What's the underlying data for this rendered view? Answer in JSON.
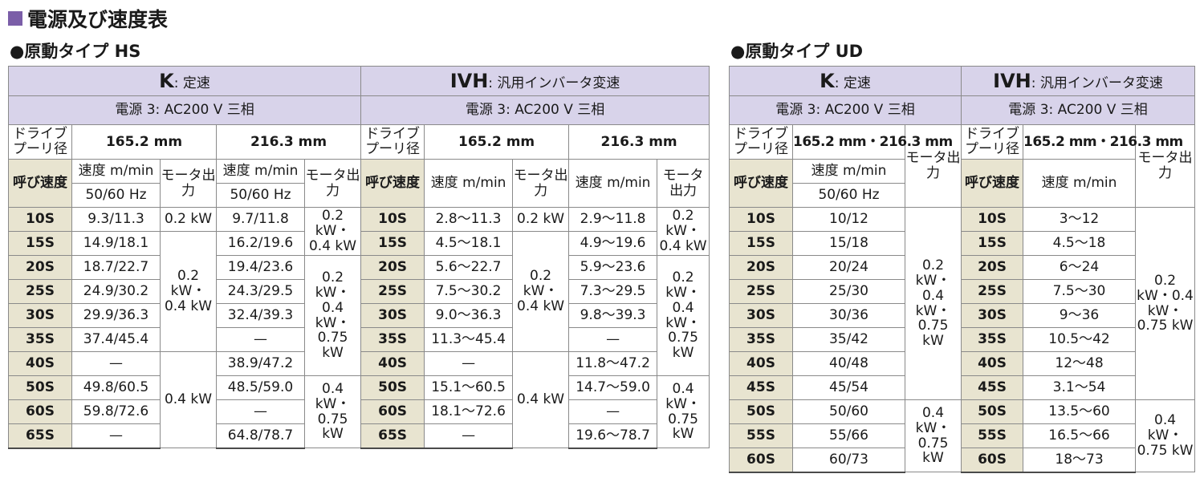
{
  "title": "電源及び速度表",
  "hs": {
    "heading": "●原動タイプ HS",
    "k_code": "K",
    "k_label": ": 定速",
    "ivh_code": "IVH",
    "ivh_label": ": 汎用インバータ変速",
    "power": "電源 3: AC200 V 三相",
    "pulley": "ドライブプーリ径",
    "d1": "165.2 mm",
    "d2": "216.3 mm",
    "nominal": "呼び速度",
    "speed": "速度 m/min",
    "hz": "50/60 Hz",
    "motor": "モータ出力",
    "rows": [
      {
        "n": "10S",
        "k1": "9.3/11.3",
        "k2": "9.7/11.8",
        "v1": "2.8〜11.3",
        "v2": "2.9〜11.8"
      },
      {
        "n": "15S",
        "k1": "14.9/18.1",
        "k2": "16.2/19.6",
        "v1": "4.5〜18.1",
        "v2": "4.9〜19.6"
      },
      {
        "n": "20S",
        "k1": "18.7/22.7",
        "k2": "19.4/23.6",
        "v1": "5.6〜22.7",
        "v2": "5.9〜23.6"
      },
      {
        "n": "25S",
        "k1": "24.9/30.2",
        "k2": "24.3/29.5",
        "v1": "7.5〜30.2",
        "v2": "7.3〜29.5"
      },
      {
        "n": "30S",
        "k1": "29.9/36.3",
        "k2": "32.4/39.3",
        "v1": "9.0〜36.3",
        "v2": "9.8〜39.3"
      },
      {
        "n": "35S",
        "k1": "37.4/45.4",
        "k2": "—",
        "v1": "11.3〜45.4",
        "v2": "—"
      },
      {
        "n": "40S",
        "k1": "—",
        "k2": "38.9/47.2",
        "v1": "—",
        "v2": "11.8〜47.2"
      },
      {
        "n": "50S",
        "k1": "49.8/60.5",
        "k2": "48.5/59.0",
        "v1": "15.1〜60.5",
        "v2": "14.7〜59.0"
      },
      {
        "n": "60S",
        "k1": "59.8/72.6",
        "k2": "—",
        "v1": "18.1〜72.6",
        "v2": "—"
      },
      {
        "n": "65S",
        "k1": "—",
        "k2": "64.8/78.7",
        "v1": "—",
        "v2": "19.6〜78.7"
      }
    ],
    "motors": {
      "a": "0.2 kW",
      "b": "0.2 kW・0.4 kW",
      "c": "0.4 kW",
      "d": "0.2 kW・0.4 kW",
      "e": "0.2 kW・0.4 kW・0.75 kW",
      "f": "0.4 kW・0.75 kW"
    }
  },
  "ud": {
    "heading": "●原動タイプ UD",
    "k_code": "K",
    "k_label": ": 定速",
    "ivh_code": "IVH",
    "ivh_label": ": 汎用インバータ変速",
    "power": "電源 3: AC200 V 三相",
    "pulley": "ドライブプーリ径",
    "d": "165.2 mm・216.3 mm",
    "nominal": "呼び速度",
    "speed": "速度 m/min",
    "hz": "50/60 Hz",
    "motor": "モータ出力",
    "rows": [
      {
        "n": "10S",
        "k": "10/12",
        "v": "3〜12"
      },
      {
        "n": "15S",
        "k": "15/18",
        "v": "4.5〜18"
      },
      {
        "n": "20S",
        "k": "20/24",
        "v": "6〜24"
      },
      {
        "n": "25S",
        "k": "25/30",
        "v": "7.5〜30"
      },
      {
        "n": "30S",
        "k": "30/36",
        "v": "9〜36"
      },
      {
        "n": "35S",
        "k": "35/42",
        "v": "10.5〜42"
      },
      {
        "n": "40S",
        "k": "40/48",
        "v": "12〜48"
      },
      {
        "n": "45S",
        "k": "45/54",
        "v": "3.1〜54"
      },
      {
        "n": "50S",
        "k": "50/60",
        "v": "13.5〜60"
      },
      {
        "n": "55S",
        "k": "55/66",
        "v": "16.5〜66"
      },
      {
        "n": "60S",
        "k": "60/73",
        "v": "18〜73"
      }
    ],
    "motors": {
      "a": "0.2 kW・0.4 kW・0.75 kW",
      "b": "0.4 kW・0.75 kW"
    }
  }
}
